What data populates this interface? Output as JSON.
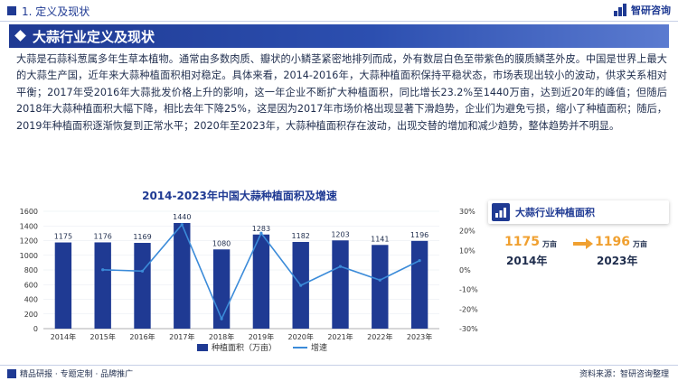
{
  "header": {
    "section": "1. 定义及现状",
    "logo_text": "智研咨询"
  },
  "banner": {
    "title": "大蒜行业定义及现状"
  },
  "paragraph": {
    "text": "大蒜是石蒜科葱属多年生草本植物。通常由多数肉质、瓣状的小鳞茎紧密地排列而成，外有数层白色至带紫色的膜质鳞茎外皮。中国是世界上最大的大蒜生产国，近年来大蒜种植面积相对稳定。具体来看，2014-2016年，大蒜种植面积保持平稳状态，市场表现出较小的波动，供求关系相对平衡；2017年受2016年大蒜批发价格上升的影响，这一年企业不断扩大种植面积，同比增长23.2%至1440万亩，达到近20年的峰值；但随后2018年大蒜种植面积大幅下降，相比去年下降25%，这是因为2017年市场价格出现显著下滑趋势，企业们为避免亏损，缩小了种植面积；随后，2019年种植面积逐渐恢复到正常水平；2020年至2023年，大蒜种植面积存在波动，出现交替的增加和减少趋势，整体趋势并不明显。"
  },
  "chart_data": {
    "type": "bar",
    "title": "2014-2023年中国大蒜种植面积及增速",
    "categories": [
      "2014年",
      "2015年",
      "2016年",
      "2017年",
      "2018年",
      "2019年",
      "2020年",
      "2021年",
      "2022年",
      "2023年"
    ],
    "series": [
      {
        "name": "种植面积（万亩）",
        "type": "bar",
        "axis": "left",
        "values": [
          1175,
          1176,
          1169,
          1440,
          1080,
          1283,
          1182,
          1203,
          1141,
          1196
        ]
      },
      {
        "name": "增速",
        "type": "line",
        "axis": "right",
        "values": [
          null,
          0.1,
          -0.6,
          23.2,
          -25.0,
          18.8,
          -7.9,
          1.8,
          -5.2,
          4.8
        ]
      }
    ],
    "left_axis": {
      "ylim": [
        0,
        1600
      ],
      "ticks": [
        "0",
        "200",
        "400",
        "600",
        "800",
        "1000",
        "1200",
        "1400",
        "1600"
      ]
    },
    "right_axis": {
      "ylim": [
        -30,
        30
      ],
      "ticks": [
        "-30%",
        "-20%",
        "-10%",
        "0%",
        "10%",
        "20%",
        "30%"
      ]
    },
    "legend_position": "bottom",
    "colors": {
      "bar": "#1f3a93",
      "line": "#3b8bd9"
    }
  },
  "side_card": {
    "title": "大蒜行业种植面积",
    "left_value": "1175",
    "left_unit": "万亩",
    "left_year": "2014年",
    "right_value": "1196",
    "right_unit": "万亩",
    "right_year": "2023年"
  },
  "footer": {
    "left": "精品研报 · 专题定制 · 品牌推广",
    "right": "资料来源：智研咨询整理"
  }
}
